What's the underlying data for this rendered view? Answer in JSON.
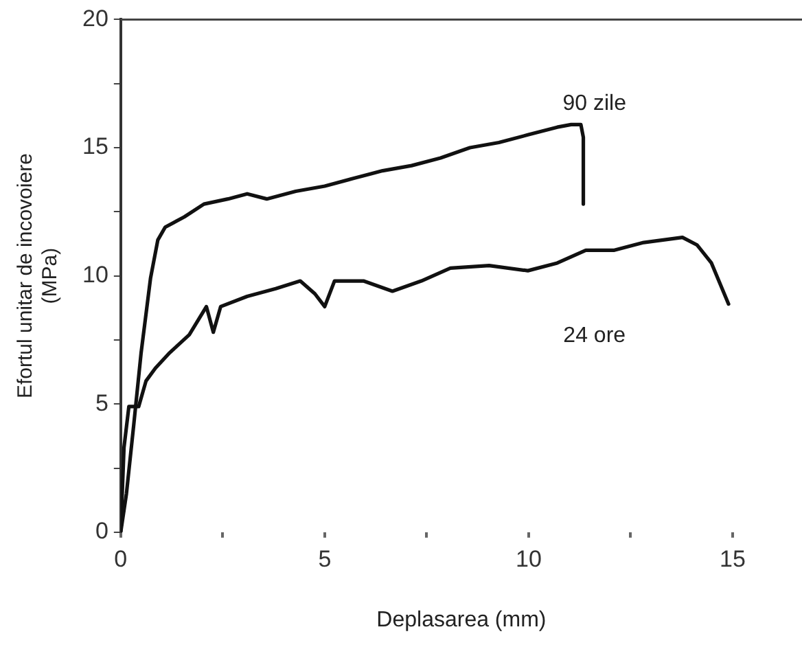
{
  "chart_data": {
    "type": "line",
    "xlabel": "Deplasarea (mm)",
    "ylabel": "Efortul unitar de incovoiere\n(MPa)",
    "xlim": [
      0,
      16.7
    ],
    "xticks": [
      0,
      {
        "value": 2.5,
        "label": null
      },
      5,
      {
        "value": 7.5,
        "label": null
      },
      10,
      {
        "value": 12.5,
        "label": null
      },
      15
    ],
    "ylim": [
      0,
      20
    ],
    "yticks": [
      0,
      {
        "value": 2.5,
        "label": null
      },
      5,
      {
        "value": 7.5,
        "label": null
      },
      10,
      {
        "value": 12.5,
        "label": null
      },
      15,
      {
        "value": 17.5,
        "label": null
      },
      20
    ],
    "grid": false,
    "legend": false,
    "marker": "none",
    "line_style": "solid",
    "series": [
      {
        "name": "90 zile",
        "color": "#111111",
        "x": [
          0,
          0.14,
          0.32,
          0.5,
          0.73,
          0.91,
          1.09,
          1.56,
          2.04,
          2.63,
          3.1,
          3.58,
          4.29,
          5.0,
          5.7,
          6.42,
          7.13,
          7.84,
          8.56,
          9.27,
          9.98,
          10.7,
          11.04,
          11.28,
          11.34,
          11.34
        ],
        "values": [
          0,
          1.5,
          4.2,
          7.0,
          9.9,
          11.4,
          11.9,
          12.3,
          12.8,
          13.0,
          13.2,
          13.0,
          13.3,
          13.5,
          13.8,
          14.1,
          14.3,
          14.6,
          15.0,
          15.2,
          15.5,
          15.8,
          15.9,
          15.9,
          15.4,
          12.8
        ]
      },
      {
        "name": "24 ore",
        "color": "#111111",
        "x": [
          0,
          0.08,
          0.2,
          0.44,
          0.62,
          0.85,
          1.2,
          1.68,
          2.1,
          2.27,
          2.45,
          3.1,
          3.8,
          4.4,
          4.76,
          5.0,
          5.24,
          5.95,
          6.66,
          7.37,
          8.08,
          9.03,
          9.98,
          10.7,
          11.4,
          12.1,
          12.82,
          13.77,
          14.13,
          14.48,
          14.9
        ],
        "values": [
          0,
          3.3,
          4.9,
          4.9,
          5.9,
          6.4,
          7.0,
          7.7,
          8.8,
          7.8,
          8.8,
          9.2,
          9.5,
          9.8,
          9.3,
          8.8,
          9.8,
          9.8,
          9.4,
          9.8,
          10.3,
          10.4,
          10.2,
          10.5,
          11.0,
          11.0,
          11.3,
          11.5,
          11.2,
          10.5,
          8.9
        ]
      }
    ]
  }
}
